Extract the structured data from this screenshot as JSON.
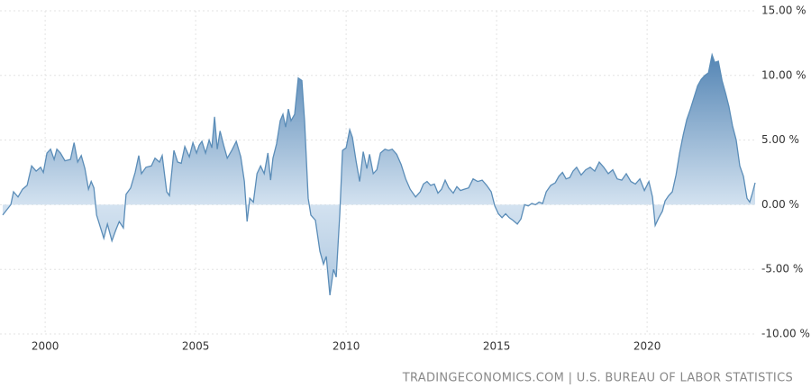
{
  "chart_data": {
    "type": "area",
    "source": "TRADINGECONOMICS.COM | U.S. BUREAU OF LABOR STATISTICS",
    "color": "#5b8db8",
    "grid": true,
    "xlim": [
      1998.5,
      2023.65
    ],
    "ylim": [
      -10,
      15
    ],
    "xticks": [
      2000,
      2005,
      2010,
      2015,
      2020
    ],
    "yticks": [
      {
        "value": 15,
        "label": "15.00 %"
      },
      {
        "value": 10,
        "label": "10.00 %"
      },
      {
        "value": 5,
        "label": "5.00 %"
      },
      {
        "value": 0,
        "label": "0.00 %"
      },
      {
        "value": -5,
        "label": "-5.00 %"
      },
      {
        "value": -10,
        "label": "-10.00 %"
      }
    ],
    "x": [
      1998.59,
      1998.86,
      1998.95,
      1999.1,
      1999.25,
      1999.4,
      1999.55,
      1999.7,
      1999.85,
      1999.94,
      2000.06,
      2000.18,
      2000.3,
      2000.39,
      2000.51,
      2000.66,
      2000.84,
      2000.96,
      2001.08,
      2001.2,
      2001.32,
      2001.44,
      2001.53,
      2001.62,
      2001.71,
      2001.83,
      2001.95,
      2002.07,
      2002.22,
      2002.34,
      2002.46,
      2002.6,
      2002.69,
      2002.84,
      2002.99,
      2003.11,
      2003.2,
      2003.35,
      2003.53,
      2003.65,
      2003.8,
      2003.89,
      2004.04,
      2004.13,
      2004.28,
      2004.4,
      2004.52,
      2004.64,
      2004.79,
      2004.91,
      2005.03,
      2005.12,
      2005.21,
      2005.33,
      2005.45,
      2005.54,
      2005.63,
      2005.72,
      2005.81,
      2005.93,
      2006.05,
      2006.2,
      2006.35,
      2006.5,
      2006.62,
      2006.71,
      2006.8,
      2006.92,
      2007.04,
      2007.16,
      2007.28,
      2007.4,
      2007.49,
      2007.57,
      2007.69,
      2007.81,
      2007.9,
      2007.99,
      2008.08,
      2008.17,
      2008.29,
      2008.41,
      2008.53,
      2008.62,
      2008.74,
      2008.83,
      2008.98,
      2009.13,
      2009.25,
      2009.34,
      2009.46,
      2009.58,
      2009.67,
      2009.79,
      2009.88,
      2010.0,
      2010.12,
      2010.21,
      2010.33,
      2010.45,
      2010.57,
      2010.69,
      2010.78,
      2010.9,
      2011.02,
      2011.14,
      2011.29,
      2011.41,
      2011.53,
      2011.68,
      2011.83,
      2011.98,
      2012.13,
      2012.31,
      2012.46,
      2012.57,
      2012.69,
      2012.81,
      2012.93,
      2013.05,
      2013.17,
      2013.29,
      2013.41,
      2013.56,
      2013.68,
      2013.8,
      2013.92,
      2014.07,
      2014.22,
      2014.37,
      2014.52,
      2014.67,
      2014.82,
      2014.94,
      2015.06,
      2015.18,
      2015.3,
      2015.42,
      2015.54,
      2015.69,
      2015.81,
      2015.93,
      2016.05,
      2016.17,
      2016.29,
      2016.41,
      2016.53,
      2016.65,
      2016.8,
      2016.95,
      2017.07,
      2017.19,
      2017.31,
      2017.43,
      2017.54,
      2017.66,
      2017.81,
      2017.96,
      2018.11,
      2018.26,
      2018.41,
      2018.56,
      2018.71,
      2018.86,
      2019.01,
      2019.16,
      2019.31,
      2019.46,
      2019.61,
      2019.76,
      2019.91,
      2020.06,
      2020.18,
      2020.27,
      2020.39,
      2020.51,
      2020.6,
      2020.72,
      2020.84,
      2020.96,
      2021.08,
      2021.2,
      2021.32,
      2021.44,
      2021.56,
      2021.68,
      2021.8,
      2021.92,
      2022.04,
      2022.16,
      2022.25,
      2022.37,
      2022.49,
      2022.61,
      2022.72,
      2022.84,
      2022.96,
      2023.08,
      2023.2,
      2023.32,
      2023.41,
      2023.5,
      2023.59
    ],
    "values": [
      -0.8,
      0,
      1.0,
      0.6,
      1.2,
      1.5,
      3.0,
      2.6,
      2.9,
      2.5,
      4.0,
      4.3,
      3.5,
      4.3,
      4.0,
      3.4,
      3.5,
      4.8,
      3.3,
      3.8,
      2.8,
      1.2,
      1.8,
      1.3,
      -0.8,
      -1.7,
      -2.6,
      -1.5,
      -2.8,
      -2.0,
      -1.3,
      -1.8,
      0.8,
      1.3,
      2.5,
      3.8,
      2.4,
      2.9,
      3.0,
      3.6,
      3.3,
      3.8,
      1.0,
      0.7,
      4.2,
      3.3,
      3.2,
      4.5,
      3.7,
      4.8,
      4.0,
      4.6,
      4.9,
      4.0,
      5.0,
      4.4,
      6.8,
      4.3,
      5.7,
      4.6,
      3.6,
      4.2,
      4.9,
      3.7,
      1.8,
      -1.3,
      0.5,
      0.2,
      2.4,
      3.0,
      2.4,
      4.0,
      1.9,
      3.6,
      4.7,
      6.5,
      7.0,
      6.0,
      7.4,
      6.5,
      7.0,
      9.8,
      9.6,
      6.5,
      0.5,
      -0.8,
      -1.2,
      -3.6,
      -4.6,
      -4.0,
      -7.0,
      -5.0,
      -5.6,
      -0.7,
      4.2,
      4.4,
      5.8,
      5.2,
      3.4,
      1.8,
      4.1,
      2.8,
      3.9,
      2.4,
      2.7,
      4.0,
      4.3,
      4.2,
      4.3,
      3.9,
      3.1,
      2.0,
      1.2,
      0.6,
      1.0,
      1.6,
      1.8,
      1.5,
      1.6,
      0.9,
      1.2,
      1.9,
      1.3,
      0.9,
      1.4,
      1.1,
      1.2,
      1.3,
      2.0,
      1.8,
      1.9,
      1.5,
      1.0,
      -0.1,
      -0.7,
      -1.0,
      -0.7,
      -1.0,
      -1.2,
      -1.5,
      -1.1,
      0.0,
      -0.1,
      0.1,
      0.0,
      0.2,
      0.1,
      1.0,
      1.5,
      1.7,
      2.2,
      2.5,
      2.0,
      2.1,
      2.6,
      2.9,
      2.3,
      2.7,
      2.9,
      2.6,
      3.3,
      2.9,
      2.4,
      2.7,
      2.0,
      1.9,
      2.4,
      1.8,
      1.6,
      2.0,
      1.1,
      1.8,
      0.6,
      -1.6,
      -1.0,
      -0.5,
      0.3,
      0.7,
      1.0,
      2.3,
      4.0,
      5.4,
      6.6,
      7.4,
      8.3,
      9.2,
      9.7,
      10.0,
      10.2,
      11.6,
      11.0,
      11.1,
      9.6,
      8.6,
      7.6,
      6.1,
      5.0,
      3.0,
      2.2,
      0.5,
      0.2,
      0.9,
      1.7
    ]
  }
}
